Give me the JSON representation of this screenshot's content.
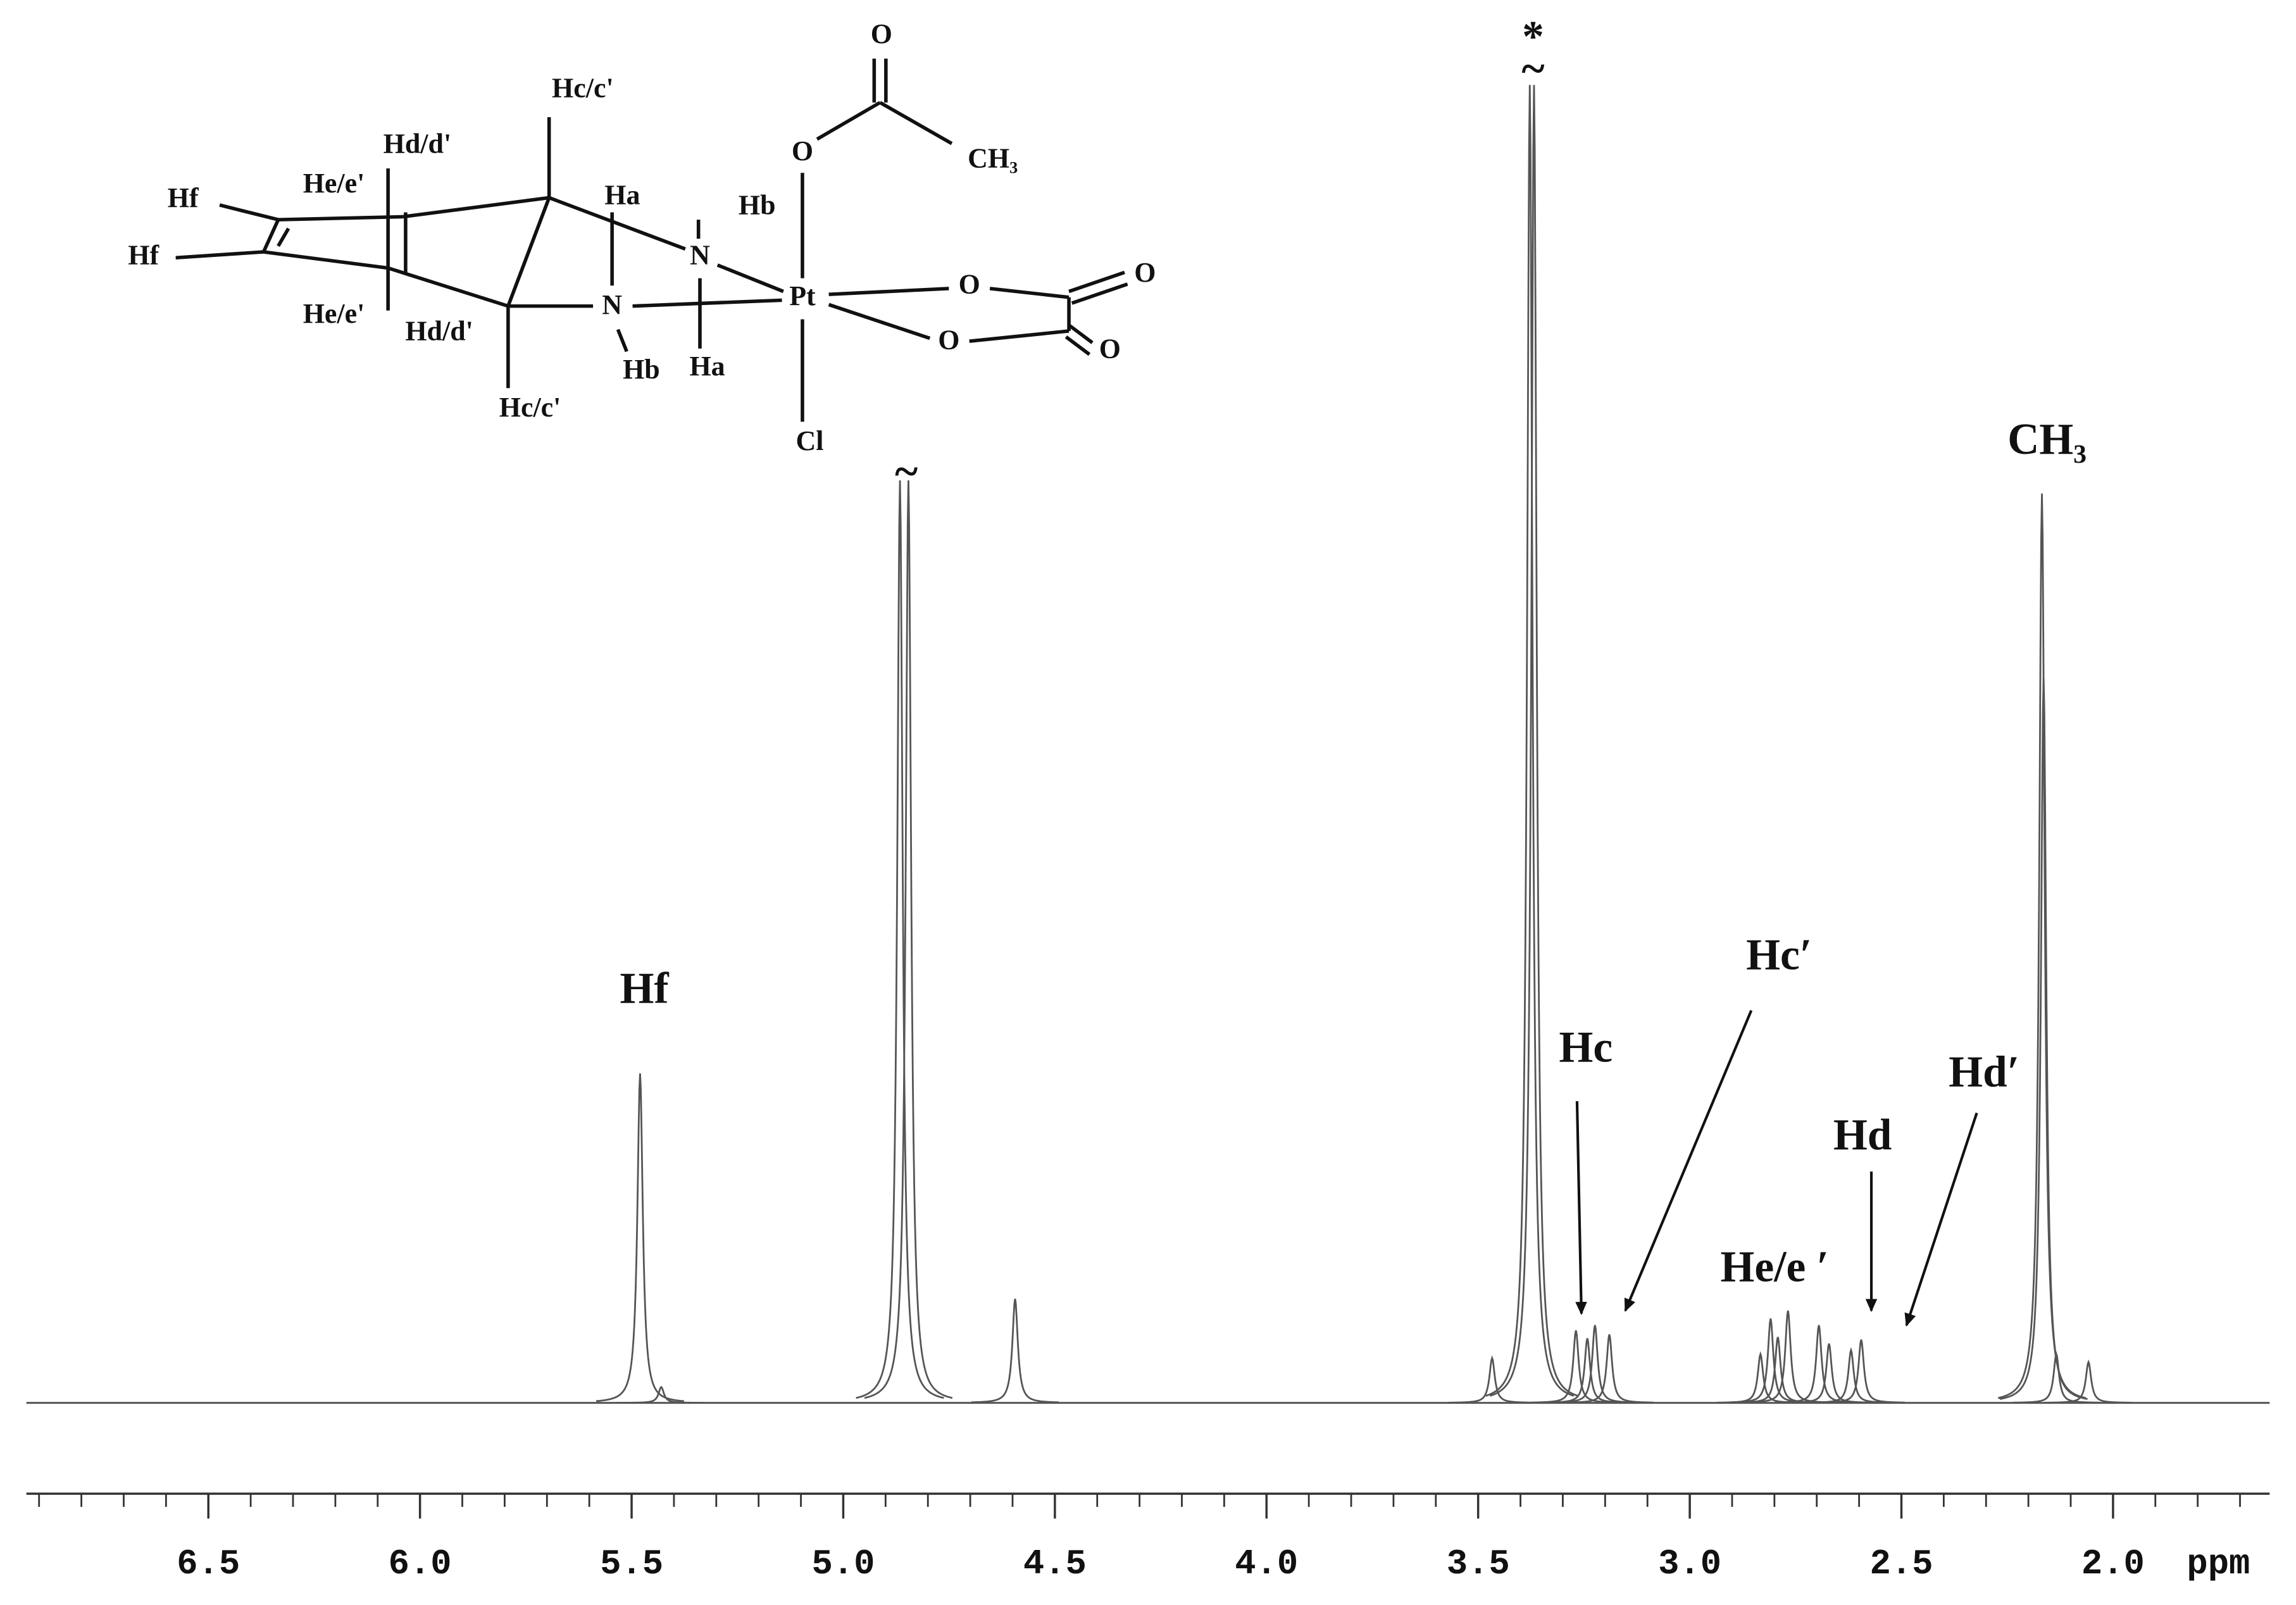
{
  "chart_data": {
    "type": "spectrum",
    "x_label": "ppm",
    "xlim": [
      6.93,
      1.63
    ],
    "xticks": [
      6.5,
      {
        "value": 6,
        "label": "6.0"
      },
      5.5,
      {
        "value": 5,
        "label": "5.0"
      },
      4.5,
      {
        "value": 4,
        "label": "4.0"
      },
      3.5,
      {
        "value": 3,
        "label": "3.0"
      },
      2.5,
      {
        "value": 2,
        "label": "2.0"
      }
    ],
    "xticks_minor": [
      6.9,
      6.8,
      6.7,
      6.6,
      6.5,
      6.4,
      6.3,
      6.2,
      6.1,
      6.0,
      5.9,
      5.8,
      5.7,
      5.6,
      5.5,
      5.4,
      5.3,
      5.2,
      5.1,
      5.0,
      4.9,
      4.8,
      4.7,
      4.6,
      4.5,
      4.4,
      4.3,
      4.2,
      4.1,
      4.0,
      3.9,
      3.8,
      3.7,
      3.6,
      3.5,
      3.4,
      3.3,
      3.2,
      3.1,
      3.0,
      2.9,
      2.8,
      2.7,
      2.6,
      2.5,
      2.4,
      2.3,
      2.2,
      2.1,
      2.0,
      1.9,
      1.8,
      1.7
    ],
    "ylim": [
      0,
      100
    ],
    "color": "#555555",
    "peaks": {
      "x": [
        5.48,
        5.43,
        4.866,
        4.846,
        4.594,
        3.467,
        3.378,
        3.368,
        3.269,
        3.242,
        3.224,
        3.19,
        2.833,
        2.809,
        2.792,
        2.768,
        2.695,
        2.671,
        2.619,
        2.595,
        2.168,
        2.164,
        2.134,
        2.058
      ],
      "values": [
        25,
        1.2,
        70,
        70,
        7.9,
        3.4,
        100,
        100,
        5.5,
        4.9,
        5.9,
        5.2,
        3.7,
        6.4,
        5,
        7,
        5.9,
        4.5,
        4,
        4.8,
        69,
        55,
        3.7,
        3.1
      ]
    },
    "annotations": [
      "Hf",
      "*",
      "~",
      "~",
      "Hc",
      "Hc′",
      "He/e ′",
      "Hd",
      "Hd′",
      "CH₃"
    ]
  },
  "structure": {
    "labels": [
      "O",
      "O",
      "CH₃",
      "Hc/c'",
      "Hd/d'",
      "He/e'",
      "Hf",
      "Hf",
      "Ha",
      "Hb",
      "N",
      "N",
      "Pt",
      "O",
      "O",
      "O",
      "O",
      "He/e'",
      "Hd/d'",
      "Hb",
      "Ha",
      "Hc/c'",
      "Cl"
    ]
  }
}
